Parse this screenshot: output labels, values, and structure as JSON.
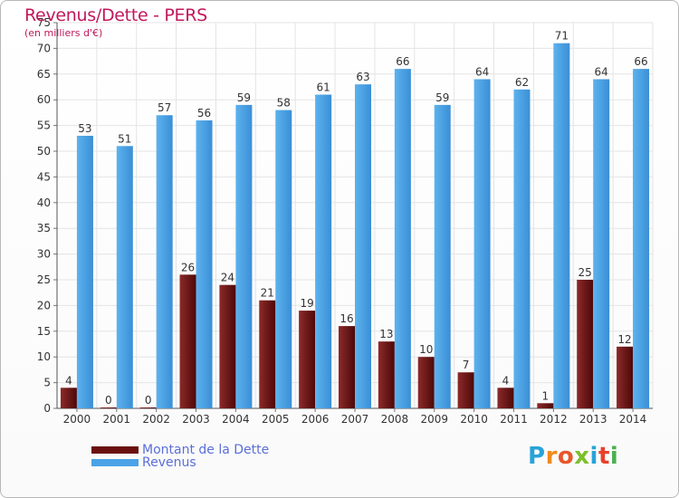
{
  "header": {
    "title": "Revenus/Dette - PERS",
    "subtitle": "(en milliers d'€)"
  },
  "legend": {
    "items": [
      {
        "label": "Montant de la Dette",
        "color": "#6b1010"
      },
      {
        "label": "Revenus",
        "color": "#4aa3e6"
      }
    ]
  },
  "logo": {
    "text": "Proxiti",
    "colors": [
      "#2aa3d8",
      "#f08a1c",
      "#e8572a",
      "#7cbf2a",
      "#2aa3d8",
      "#e8402a",
      "#4caf50"
    ]
  },
  "chart_data": {
    "type": "bar",
    "categories": [
      "2000",
      "2001",
      "2002",
      "2003",
      "2004",
      "2005",
      "2006",
      "2007",
      "2008",
      "2009",
      "2010",
      "2011",
      "2012",
      "2013",
      "2014"
    ],
    "series": [
      {
        "name": "Montant de la Dette",
        "color": "#6b1010",
        "values": [
          4,
          0,
          0,
          26,
          24,
          21,
          19,
          16,
          13,
          10,
          7,
          4,
          1,
          25,
          12
        ]
      },
      {
        "name": "Revenus",
        "color": "#4aa3e6",
        "values": [
          53,
          51,
          57,
          56,
          59,
          58,
          61,
          63,
          66,
          59,
          64,
          62,
          71,
          64,
          66
        ]
      }
    ],
    "ylim": [
      0,
      75
    ],
    "yticks": [
      0,
      5,
      10,
      15,
      20,
      25,
      30,
      35,
      40,
      45,
      50,
      55,
      60,
      65,
      70,
      75
    ],
    "grid": true,
    "legend_position": "bottom-left"
  }
}
